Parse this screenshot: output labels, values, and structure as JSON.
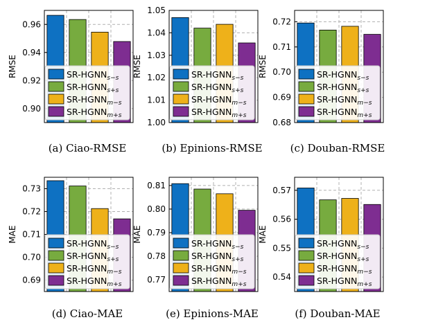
{
  "legend": {
    "base": "SR-HGNN",
    "subscripts": [
      "s−s",
      "s+s",
      "m−s",
      "m+s"
    ]
  },
  "colors": [
    "#0e71c2",
    "#77ab3f",
    "#eeb11a",
    "#7e2d91"
  ],
  "chart_data": [
    {
      "type": "bar",
      "caption": "(a) Ciao-RMSE",
      "ylabel": "RMSE",
      "series": [
        "SR-HGNN_{s−s}",
        "SR-HGNN_{s+s}",
        "SR-HGNN_{m−s}",
        "SR-HGNN_{m+s}"
      ],
      "values": [
        0.9665,
        0.9635,
        0.9545,
        0.9478
      ],
      "ylim": [
        0.89,
        0.97
      ],
      "yticks": [
        0.9,
        0.92,
        0.94,
        0.96
      ],
      "yticklabels": [
        "0.90",
        "0.92",
        "0.94",
        "0.96"
      ],
      "grid": true,
      "legend_position": "lower-right"
    },
    {
      "type": "bar",
      "caption": "(b) Epinions-RMSE",
      "ylabel": "RMSE",
      "series": [
        "SR-HGNN_{s−s}",
        "SR-HGNN_{s+s}",
        "SR-HGNN_{m−s}",
        "SR-HGNN_{m+s}"
      ],
      "values": [
        1.0468,
        1.0421,
        1.0438,
        1.0355
      ],
      "ylim": [
        1.0,
        1.05
      ],
      "yticks": [
        1.0,
        1.01,
        1.02,
        1.03,
        1.04,
        1.05
      ],
      "yticklabels": [
        "1.00",
        "1.01",
        "1.02",
        "1.03",
        "1.04",
        "1.05"
      ],
      "grid": true,
      "legend_position": "lower-right"
    },
    {
      "type": "bar",
      "caption": "(c) Douban-RMSE",
      "ylabel": "RMSE",
      "series": [
        "SR-HGNN_{s−s}",
        "SR-HGNN_{s+s}",
        "SR-HGNN_{m−s}",
        "SR-HGNN_{m+s}"
      ],
      "values": [
        0.7195,
        0.7167,
        0.7182,
        0.715
      ],
      "ylim": [
        0.68,
        0.7245
      ],
      "yticks": [
        0.68,
        0.69,
        0.7,
        0.71,
        0.72
      ],
      "yticklabels": [
        "0.68",
        "0.69",
        "0.70",
        "0.71",
        "0.72"
      ],
      "grid": true,
      "legend_position": "lower-right"
    },
    {
      "type": "bar",
      "caption": "(d) Ciao-MAE",
      "ylabel": "MAE",
      "series": [
        "SR-HGNN_{s−s}",
        "SR-HGNN_{s+s}",
        "SR-HGNN_{m−s}",
        "SR-HGNN_{m+s}"
      ],
      "values": [
        0.7335,
        0.7312,
        0.7213,
        0.7168
      ],
      "ylim": [
        0.685,
        0.735
      ],
      "yticks": [
        0.69,
        0.7,
        0.71,
        0.72,
        0.73
      ],
      "yticklabels": [
        "0.69",
        "0.70",
        "0.71",
        "0.72",
        "0.73"
      ],
      "grid": true,
      "legend_position": "lower-right"
    },
    {
      "type": "bar",
      "caption": "(e) Epinions-MAE",
      "ylabel": "MAE",
      "series": [
        "SR-HGNN_{s−s}",
        "SR-HGNN_{s+s}",
        "SR-HGNN_{m−s}",
        "SR-HGNN_{m+s}"
      ],
      "values": [
        0.8108,
        0.8085,
        0.8065,
        0.7995
      ],
      "ylim": [
        0.765,
        0.8135
      ],
      "yticks": [
        0.77,
        0.78,
        0.79,
        0.8,
        0.81
      ],
      "yticklabels": [
        "0.77",
        "0.78",
        "0.79",
        "0.80",
        "0.81"
      ],
      "grid": true,
      "legend_position": "lower-right"
    },
    {
      "type": "bar",
      "caption": "(f) Douban-MAE",
      "ylabel": "MAE",
      "series": [
        "SR-HGNN_{s−s}",
        "SR-HGNN_{s+s}",
        "SR-HGNN_{m−s}",
        "SR-HGNN_{m+s}"
      ],
      "values": [
        0.5708,
        0.5667,
        0.5672,
        0.5651
      ],
      "ylim": [
        0.535,
        0.5745
      ],
      "yticks": [
        0.54,
        0.55,
        0.56,
        0.57
      ],
      "yticklabels": [
        "0.54",
        "0.55",
        "0.56",
        "0.57"
      ],
      "grid": true,
      "legend_position": "lower-right"
    }
  ]
}
